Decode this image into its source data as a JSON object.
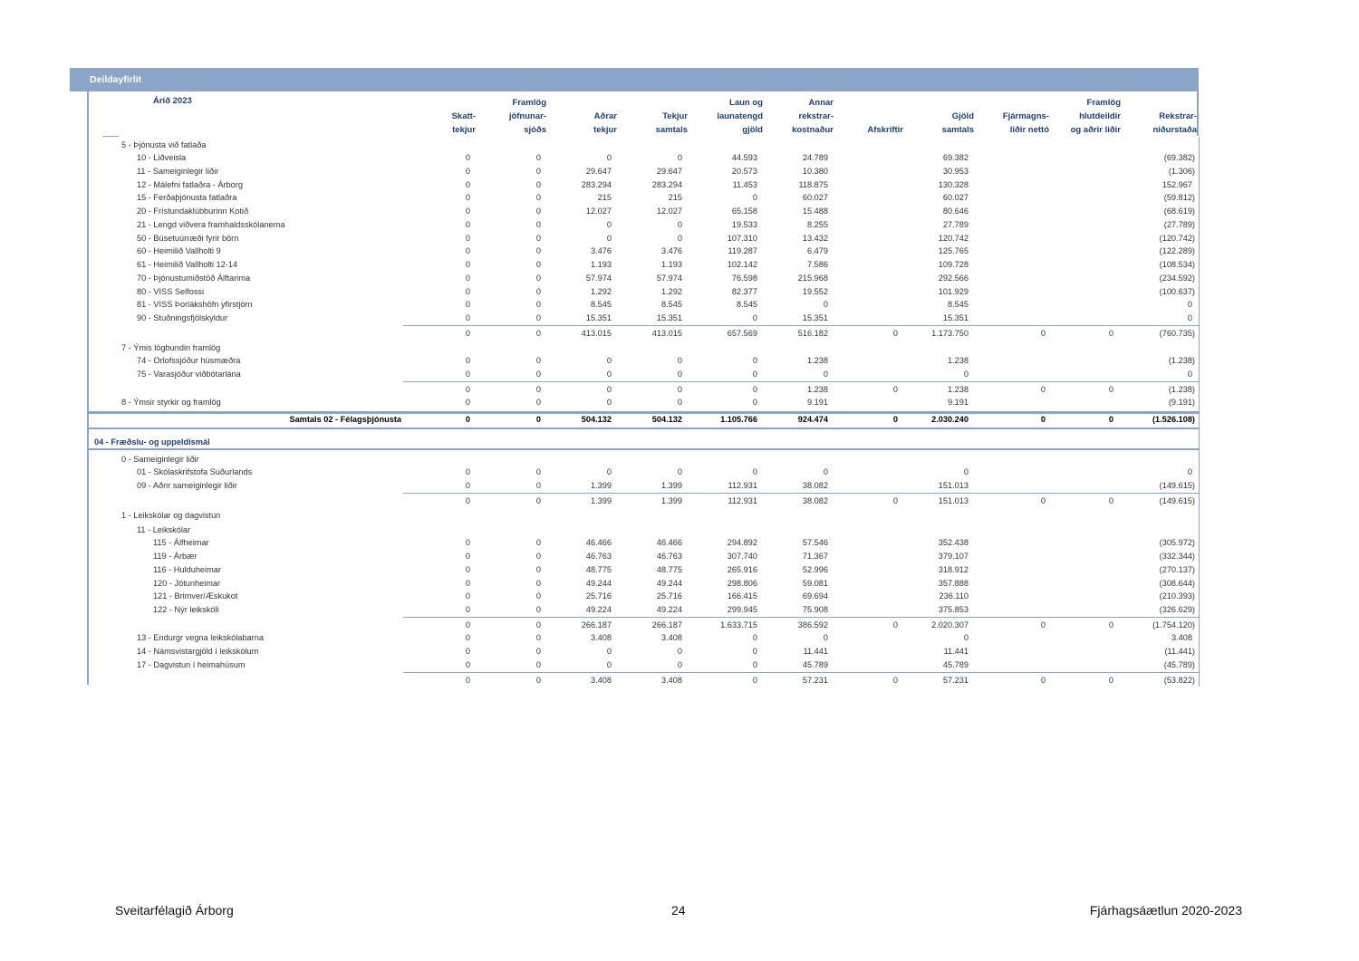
{
  "header_bar": {
    "title": "Deildayfirlit"
  },
  "year_label": "Árið 2023",
  "columns": [
    [
      "",
      "Skatt-",
      "tekjur"
    ],
    [
      "Framlög",
      "jöfnunar-",
      "sjóðs"
    ],
    [
      "",
      "Aðrar",
      "tekjur"
    ],
    [
      "",
      "Tekjur",
      "samtals"
    ],
    [
      "Laun og",
      "launatengd",
      "gjöld"
    ],
    [
      "Annar",
      "rekstrar-",
      "kostnaður"
    ],
    [
      "",
      "",
      "Afskriftir"
    ],
    [
      "",
      "Gjöld",
      "samtals"
    ],
    [
      "",
      "Fjármagns-",
      "liðir nettó"
    ],
    [
      "Framlög",
      "hlutdeildir",
      "og aðrir liðir"
    ],
    [
      "",
      "Rekstrar-",
      "niðurstaða"
    ]
  ],
  "rows": [
    {
      "type": "group",
      "level": 0,
      "label": "5 - Þjónusta við fatlaða",
      "v": []
    },
    {
      "type": "item",
      "level": 1,
      "label": "10 - Liðveisla",
      "v": [
        "0",
        "0",
        "0",
        "0",
        "44.593",
        "24.789",
        "",
        "69.382",
        "",
        "",
        "(69.382)"
      ]
    },
    {
      "type": "item",
      "level": 1,
      "label": "11 - Sameiginlegir liðir",
      "v": [
        "0",
        "0",
        "29.647",
        "29.647",
        "20.573",
        "10.380",
        "",
        "30.953",
        "",
        "",
        "(1.306)"
      ]
    },
    {
      "type": "item",
      "level": 1,
      "label": "12 - Málefni fatlaðra - Árborg",
      "v": [
        "0",
        "0",
        "283.294",
        "283.294",
        "11.453",
        "118.875",
        "",
        "130.328",
        "",
        "",
        "152.967"
      ]
    },
    {
      "type": "item",
      "level": 1,
      "label": "15 - Ferðaþjónusta fatlaðra",
      "v": [
        "0",
        "0",
        "215",
        "215",
        "0",
        "60.027",
        "",
        "60.027",
        "",
        "",
        "(59.812)"
      ]
    },
    {
      "type": "item",
      "level": 1,
      "label": "20 - Frístundaklúbburinn Kotið",
      "v": [
        "0",
        "0",
        "12.027",
        "12.027",
        "65.158",
        "15.488",
        "",
        "80.646",
        "",
        "",
        "(68.619)"
      ]
    },
    {
      "type": "item",
      "level": 1,
      "label": "21 - Lengd viðvera framhaldsskólanema",
      "v": [
        "0",
        "0",
        "0",
        "0",
        "19.533",
        "8.255",
        "",
        "27.789",
        "",
        "",
        "(27.789)"
      ]
    },
    {
      "type": "item",
      "level": 1,
      "label": "50 - Búsetuúrræði fyrir börn",
      "v": [
        "0",
        "0",
        "0",
        "0",
        "107.310",
        "13.432",
        "",
        "120.742",
        "",
        "",
        "(120.742)"
      ]
    },
    {
      "type": "item",
      "level": 1,
      "label": "60 - Heimilið Vallholti 9",
      "v": [
        "0",
        "0",
        "3.476",
        "3.476",
        "119.287",
        "6.479",
        "",
        "125.765",
        "",
        "",
        "(122.289)"
      ]
    },
    {
      "type": "item",
      "level": 1,
      "label": "61 - Heimilið Vallholti 12-14",
      "v": [
        "0",
        "0",
        "1.193",
        "1.193",
        "102.142",
        "7.586",
        "",
        "109.728",
        "",
        "",
        "(108.534)"
      ]
    },
    {
      "type": "item",
      "level": 1,
      "label": "70 - Þjónustumiðstöð Álftarima",
      "v": [
        "0",
        "0",
        "57.974",
        "57.974",
        "76.598",
        "215.968",
        "",
        "292.566",
        "",
        "",
        "(234.592)"
      ]
    },
    {
      "type": "item",
      "level": 1,
      "label": "80 - VISS Selfossi",
      "v": [
        "0",
        "0",
        "1.292",
        "1.292",
        "82.377",
        "19.552",
        "",
        "101.929",
        "",
        "",
        "(100.637)"
      ]
    },
    {
      "type": "item",
      "level": 1,
      "label": "81 - VISS Þorlákshöfn yfirstjórn",
      "v": [
        "0",
        "0",
        "8.545",
        "8.545",
        "8.545",
        "0",
        "",
        "8.545",
        "",
        "",
        "0"
      ]
    },
    {
      "type": "item",
      "level": 1,
      "label": "90 - Stuðningsfjölskyldur",
      "v": [
        "0",
        "0",
        "15.351",
        "15.351",
        "0",
        "15.351",
        "",
        "15.351",
        "",
        "",
        "0"
      ]
    },
    {
      "type": "subtotal",
      "level": 1,
      "label": "",
      "v": [
        "0",
        "0",
        "413.015",
        "413.015",
        "657.569",
        "516.182",
        "0",
        "1.173.750",
        "0",
        "0",
        "(760.735)"
      ]
    },
    {
      "type": "group",
      "level": 0,
      "label": "7 - Ýmis lögbundin framlög",
      "v": []
    },
    {
      "type": "item",
      "level": 1,
      "label": "74 - Orlofssjóður húsmæðra",
      "v": [
        "0",
        "0",
        "0",
        "0",
        "0",
        "1.238",
        "",
        "1.238",
        "",
        "",
        "(1.238)"
      ]
    },
    {
      "type": "item",
      "level": 1,
      "label": "75 - Varasjóður viðbótarlána",
      "v": [
        "0",
        "0",
        "0",
        "0",
        "0",
        "0",
        "",
        "0",
        "",
        "",
        "0"
      ]
    },
    {
      "type": "subtotal",
      "level": 1,
      "label": "",
      "v": [
        "0",
        "0",
        "0",
        "0",
        "0",
        "1.238",
        "0",
        "1.238",
        "0",
        "0",
        "(1.238)"
      ]
    },
    {
      "type": "item",
      "level": 0,
      "label": "8 - Ýmsir styrkir og framlög",
      "v": [
        "0",
        "0",
        "0",
        "0",
        "0",
        "9.191",
        "",
        "9.191",
        "",
        "",
        "(9.191)"
      ]
    },
    {
      "type": "total",
      "level": 0,
      "label": "Samtals 02 - Félagsþjónusta",
      "v": [
        "0",
        "0",
        "504.132",
        "504.132",
        "1.105.766",
        "924.474",
        "0",
        "2.030.240",
        "0",
        "0",
        "(1.526.108)"
      ]
    },
    {
      "type": "dept",
      "level": 0,
      "label": "04 - Fræðslu- og uppeldismál",
      "v": []
    },
    {
      "type": "group",
      "level": 0,
      "label": "0 - Sameiginlegir liðir",
      "v": []
    },
    {
      "type": "item",
      "level": 1,
      "label": "01 - Skólaskrifstofa Suðurlands",
      "v": [
        "0",
        "0",
        "0",
        "0",
        "0",
        "0",
        "",
        "0",
        "",
        "",
        "0"
      ]
    },
    {
      "type": "item",
      "level": 1,
      "label": "09 - Aðrir sameiginlegir liðir",
      "v": [
        "0",
        "0",
        "1.399",
        "1.399",
        "112.931",
        "38.082",
        "",
        "151.013",
        "",
        "",
        "(149.615)"
      ]
    },
    {
      "type": "subtotal",
      "level": 1,
      "label": "",
      "v": [
        "0",
        "0",
        "1.399",
        "1.399",
        "112.931",
        "38.082",
        "0",
        "151.013",
        "0",
        "0",
        "(149.615)"
      ]
    },
    {
      "type": "group",
      "level": 0,
      "label": "1 - Leikskólar og dagvistun",
      "v": []
    },
    {
      "type": "group",
      "level": 1,
      "label": "11 - Leikskólar",
      "v": []
    },
    {
      "type": "item",
      "level": 2,
      "label": "115 - Álfheimar",
      "v": [
        "0",
        "0",
        "46.466",
        "46.466",
        "294.892",
        "57.546",
        "",
        "352.438",
        "",
        "",
        "(305.972)"
      ]
    },
    {
      "type": "item",
      "level": 2,
      "label": "119 - Árbær",
      "v": [
        "0",
        "0",
        "46.763",
        "46.763",
        "307.740",
        "71.367",
        "",
        "379.107",
        "",
        "",
        "(332.344)"
      ]
    },
    {
      "type": "item",
      "level": 2,
      "label": "116 - Hulduheimar",
      "v": [
        "0",
        "0",
        "48.775",
        "48.775",
        "265.916",
        "52.996",
        "",
        "318.912",
        "",
        "",
        "(270.137)"
      ]
    },
    {
      "type": "item",
      "level": 2,
      "label": "120 - Jötunheimar",
      "v": [
        "0",
        "0",
        "49.244",
        "49.244",
        "298.806",
        "59.081",
        "",
        "357.888",
        "",
        "",
        "(308.644)"
      ]
    },
    {
      "type": "item",
      "level": 2,
      "label": "121 - Brimver/Æskukot",
      "v": [
        "0",
        "0",
        "25.716",
        "25.716",
        "166.415",
        "69.694",
        "",
        "236.110",
        "",
        "",
        "(210.393)"
      ]
    },
    {
      "type": "item",
      "level": 2,
      "label": "122 - Nýr leikskóli",
      "v": [
        "0",
        "0",
        "49.224",
        "49.224",
        "299.945",
        "75.908",
        "",
        "375.853",
        "",
        "",
        "(326.629)"
      ]
    },
    {
      "type": "subtotal",
      "level": 2,
      "label": "",
      "v": [
        "0",
        "0",
        "266.187",
        "266.187",
        "1.633.715",
        "386.592",
        "0",
        "2.020.307",
        "0",
        "0",
        "(1.754.120)"
      ]
    },
    {
      "type": "item",
      "level": 1,
      "label": "13 - Endurgr vegna leikskólabarna",
      "v": [
        "0",
        "0",
        "3.408",
        "3.408",
        "0",
        "0",
        "",
        "0",
        "",
        "",
        "3.408"
      ]
    },
    {
      "type": "item",
      "level": 1,
      "label": "14 - Námsvistargjöld í leikskólum",
      "v": [
        "0",
        "0",
        "0",
        "0",
        "0",
        "11.441",
        "",
        "11.441",
        "",
        "",
        "(11.441)"
      ]
    },
    {
      "type": "item",
      "level": 1,
      "label": "17 - Dagvistun í heimahúsum",
      "v": [
        "0",
        "0",
        "0",
        "0",
        "0",
        "45.789",
        "",
        "45.789",
        "",
        "",
        "(45.789)"
      ]
    },
    {
      "type": "subtotal",
      "level": 1,
      "label": "",
      "v": [
        "0",
        "0",
        "3.408",
        "3.408",
        "0",
        "57.231",
        "0",
        "57.231",
        "0",
        "0",
        "(53.822)"
      ]
    }
  ],
  "footer": {
    "left": "Sveitarfélagið Árborg",
    "center": "24",
    "right": "Fjárhagsáætlun 2020-2023"
  },
  "colors": {
    "accent": "#8aa5c8",
    "heading": "#1f3d7a"
  }
}
